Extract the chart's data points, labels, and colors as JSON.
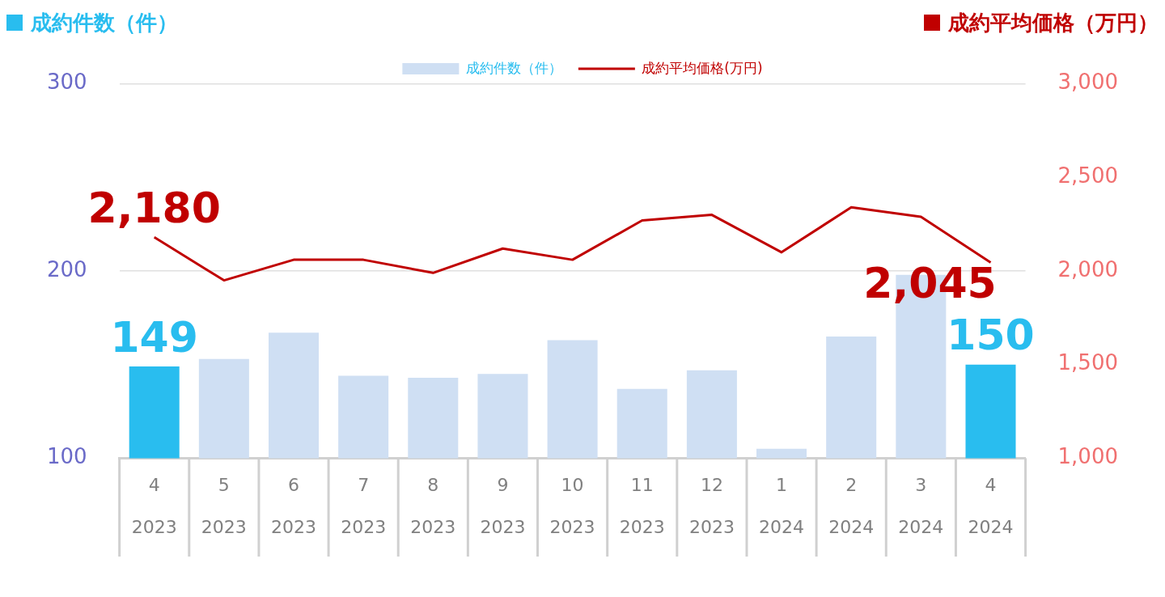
{
  "chart_data": {
    "type": "bar",
    "ylabel": "成約件数（件）",
    "y2label": "成約平均価格（万円）",
    "categories": [
      "4\n2023",
      "5\n2023",
      "6\n2023",
      "7\n2023",
      "8\n2023",
      "9\n2023",
      "10\n2023",
      "11\n2023",
      "12\n2023",
      "1\n2024",
      "2\n2024",
      "3\n2024",
      "4\n2024"
    ],
    "series": [
      {
        "name": "成約件数（件）",
        "color": "#cfdff3",
        "colors": [
          "#29bdef",
          "#cfdff3",
          "#cfdff3",
          "#cfdff3",
          "#cfdff3",
          "#cfdff3",
          "#cfdff3",
          "#cfdff3",
          "#cfdff3",
          "#cfdff3",
          "#cfdff3",
          "#cfdff3",
          "#29bdef"
        ],
        "values": [
          149,
          153,
          167,
          144,
          143,
          145,
          163,
          137,
          147,
          105,
          165,
          198,
          150
        ],
        "value_labels": [
          "149",
          null,
          null,
          null,
          null,
          null,
          null,
          null,
          null,
          null,
          null,
          null,
          "150"
        ]
      },
      {
        "name": "成約平均価格(万円)",
        "type": "line",
        "axis": "y2",
        "color": "#c00000",
        "values": [
          2180,
          1950,
          2060,
          2060,
          1990,
          2120,
          2060,
          2270,
          2300,
          2100,
          2340,
          2290,
          2045
        ],
        "value_labels": [
          "2,180",
          null,
          null,
          null,
          null,
          null,
          null,
          null,
          null,
          null,
          null,
          null,
          "2,045"
        ]
      }
    ],
    "ylim": [
      100,
      300
    ],
    "yticks": [
      100,
      200,
      300
    ],
    "y2lim": [
      1000,
      3000
    ],
    "y2ticks": [
      {
        "value": 1000,
        "label": "1,000"
      },
      {
        "value": 1500,
        "label": "1,500"
      },
      {
        "value": 2000,
        "label": "2,000"
      },
      {
        "value": 2500,
        "label": "2,500"
      },
      {
        "value": 3000,
        "label": "3,000"
      }
    ],
    "grid": "y",
    "legend": "top",
    "marker": "none"
  }
}
